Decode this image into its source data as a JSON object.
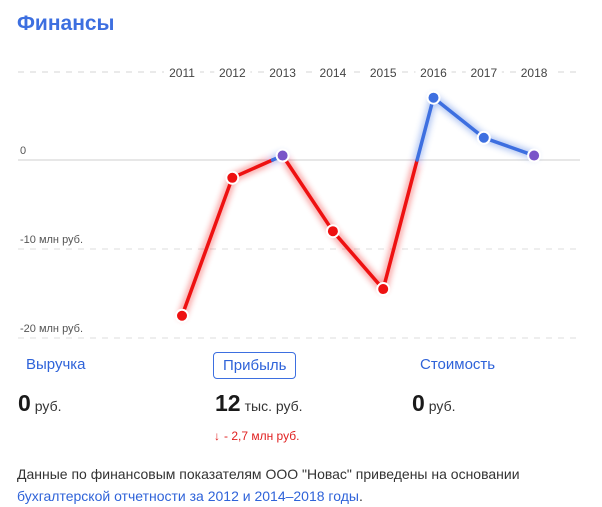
{
  "title": "Финансы",
  "chart_data": {
    "type": "line",
    "categories": [
      "2011",
      "2012",
      "2013",
      "2014",
      "2015",
      "2016",
      "2017",
      "2018"
    ],
    "series": [
      {
        "values": [
          -17.5,
          -2,
          0.5,
          -8,
          -14.5,
          7,
          2.5,
          0.5
        ]
      }
    ],
    "y_tick_labels": [
      "0",
      "-10 млн руб.",
      "-20 млн руб."
    ],
    "y_tick_values": [
      0,
      -10,
      -20
    ],
    "ylim": [
      -21,
      10
    ],
    "grid": true,
    "colors": {
      "negative": "#ee1111",
      "positive": "#3d6fe0",
      "zero_point": "#7a55c8"
    }
  },
  "tabs": [
    {
      "label": "Выручка",
      "active": false
    },
    {
      "label": "Прибыль",
      "active": true
    },
    {
      "label": "Стоимость",
      "active": false
    }
  ],
  "metrics": [
    {
      "value": "0",
      "unit": "руб."
    },
    {
      "value": "12",
      "unit": "тыс. руб."
    },
    {
      "value": "0",
      "unit": "руб."
    }
  ],
  "delta": {
    "arrow": "↓",
    "text": "- 2,7 млн руб."
  },
  "note": {
    "text": "Данные по финансовым показателям ООО \"Новас\" приведены на основании ",
    "link": "бухгалтерской отчетности за 2012 и 2014–2018 годы",
    "suffix": "."
  }
}
